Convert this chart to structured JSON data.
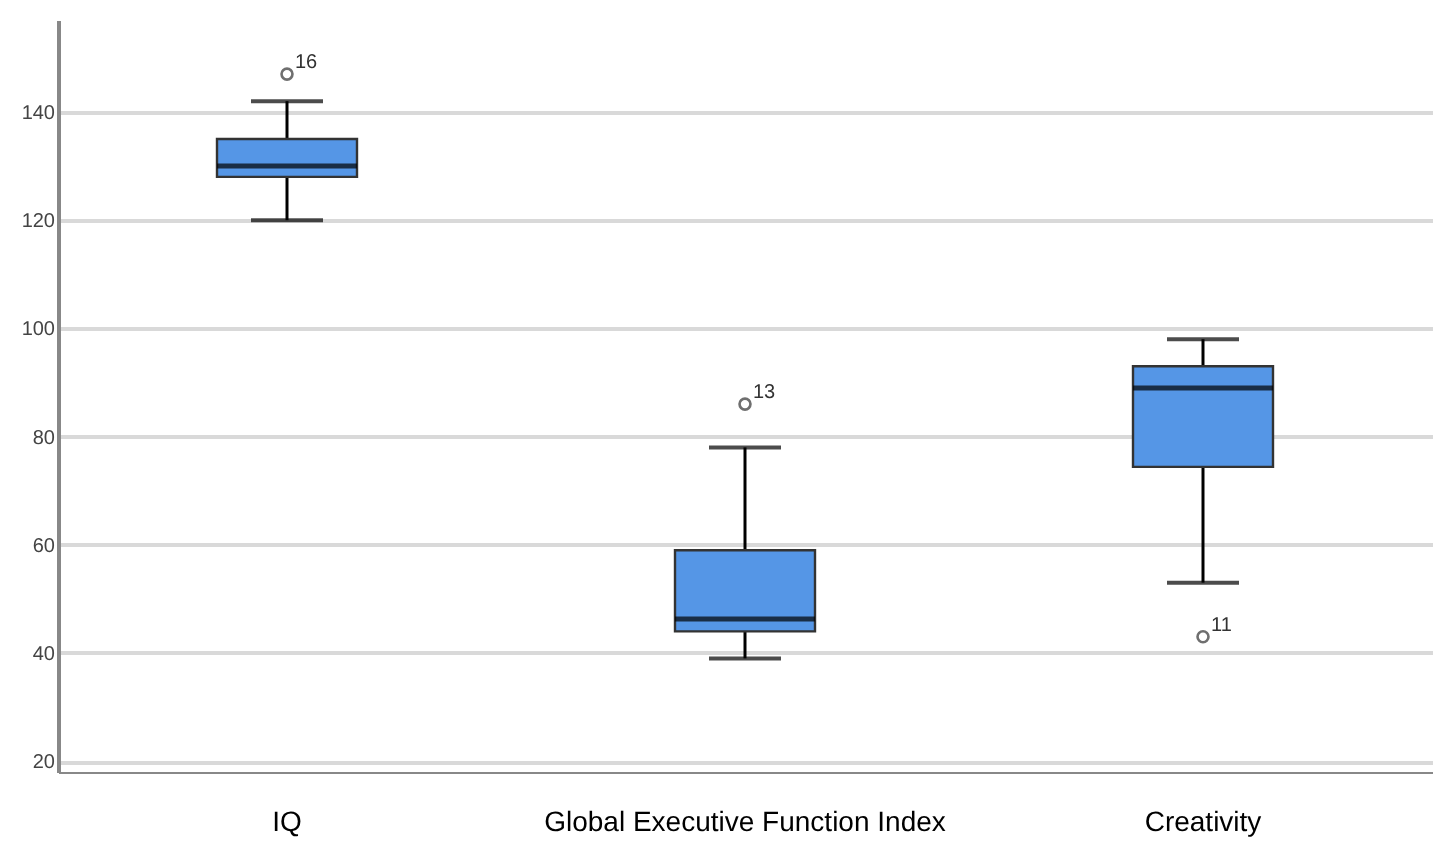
{
  "chart_data": {
    "type": "box",
    "categories": [
      "IQ",
      "Global Executive Function Index",
      "Creativity"
    ],
    "boxes": [
      {
        "low": 120,
        "q1": 128,
        "median": 130,
        "q3": 135,
        "high": 142,
        "outliers": [
          147
        ]
      },
      {
        "low": 39,
        "q1": 44,
        "median": 46.3,
        "q3": 59,
        "high": 78,
        "outliers": [
          86
        ]
      },
      {
        "low": 53,
        "q1": 74.4,
        "median": 89,
        "q3": 93,
        "high": 98,
        "outliers": [
          43
        ]
      }
    ],
    "color": "#5596e6",
    "ylim": [
      18,
      157
    ],
    "yticks": [
      20,
      40,
      60,
      80,
      100,
      120,
      140
    ],
    "grid": "y",
    "annotations": [
      "16",
      "13",
      "11"
    ]
  }
}
